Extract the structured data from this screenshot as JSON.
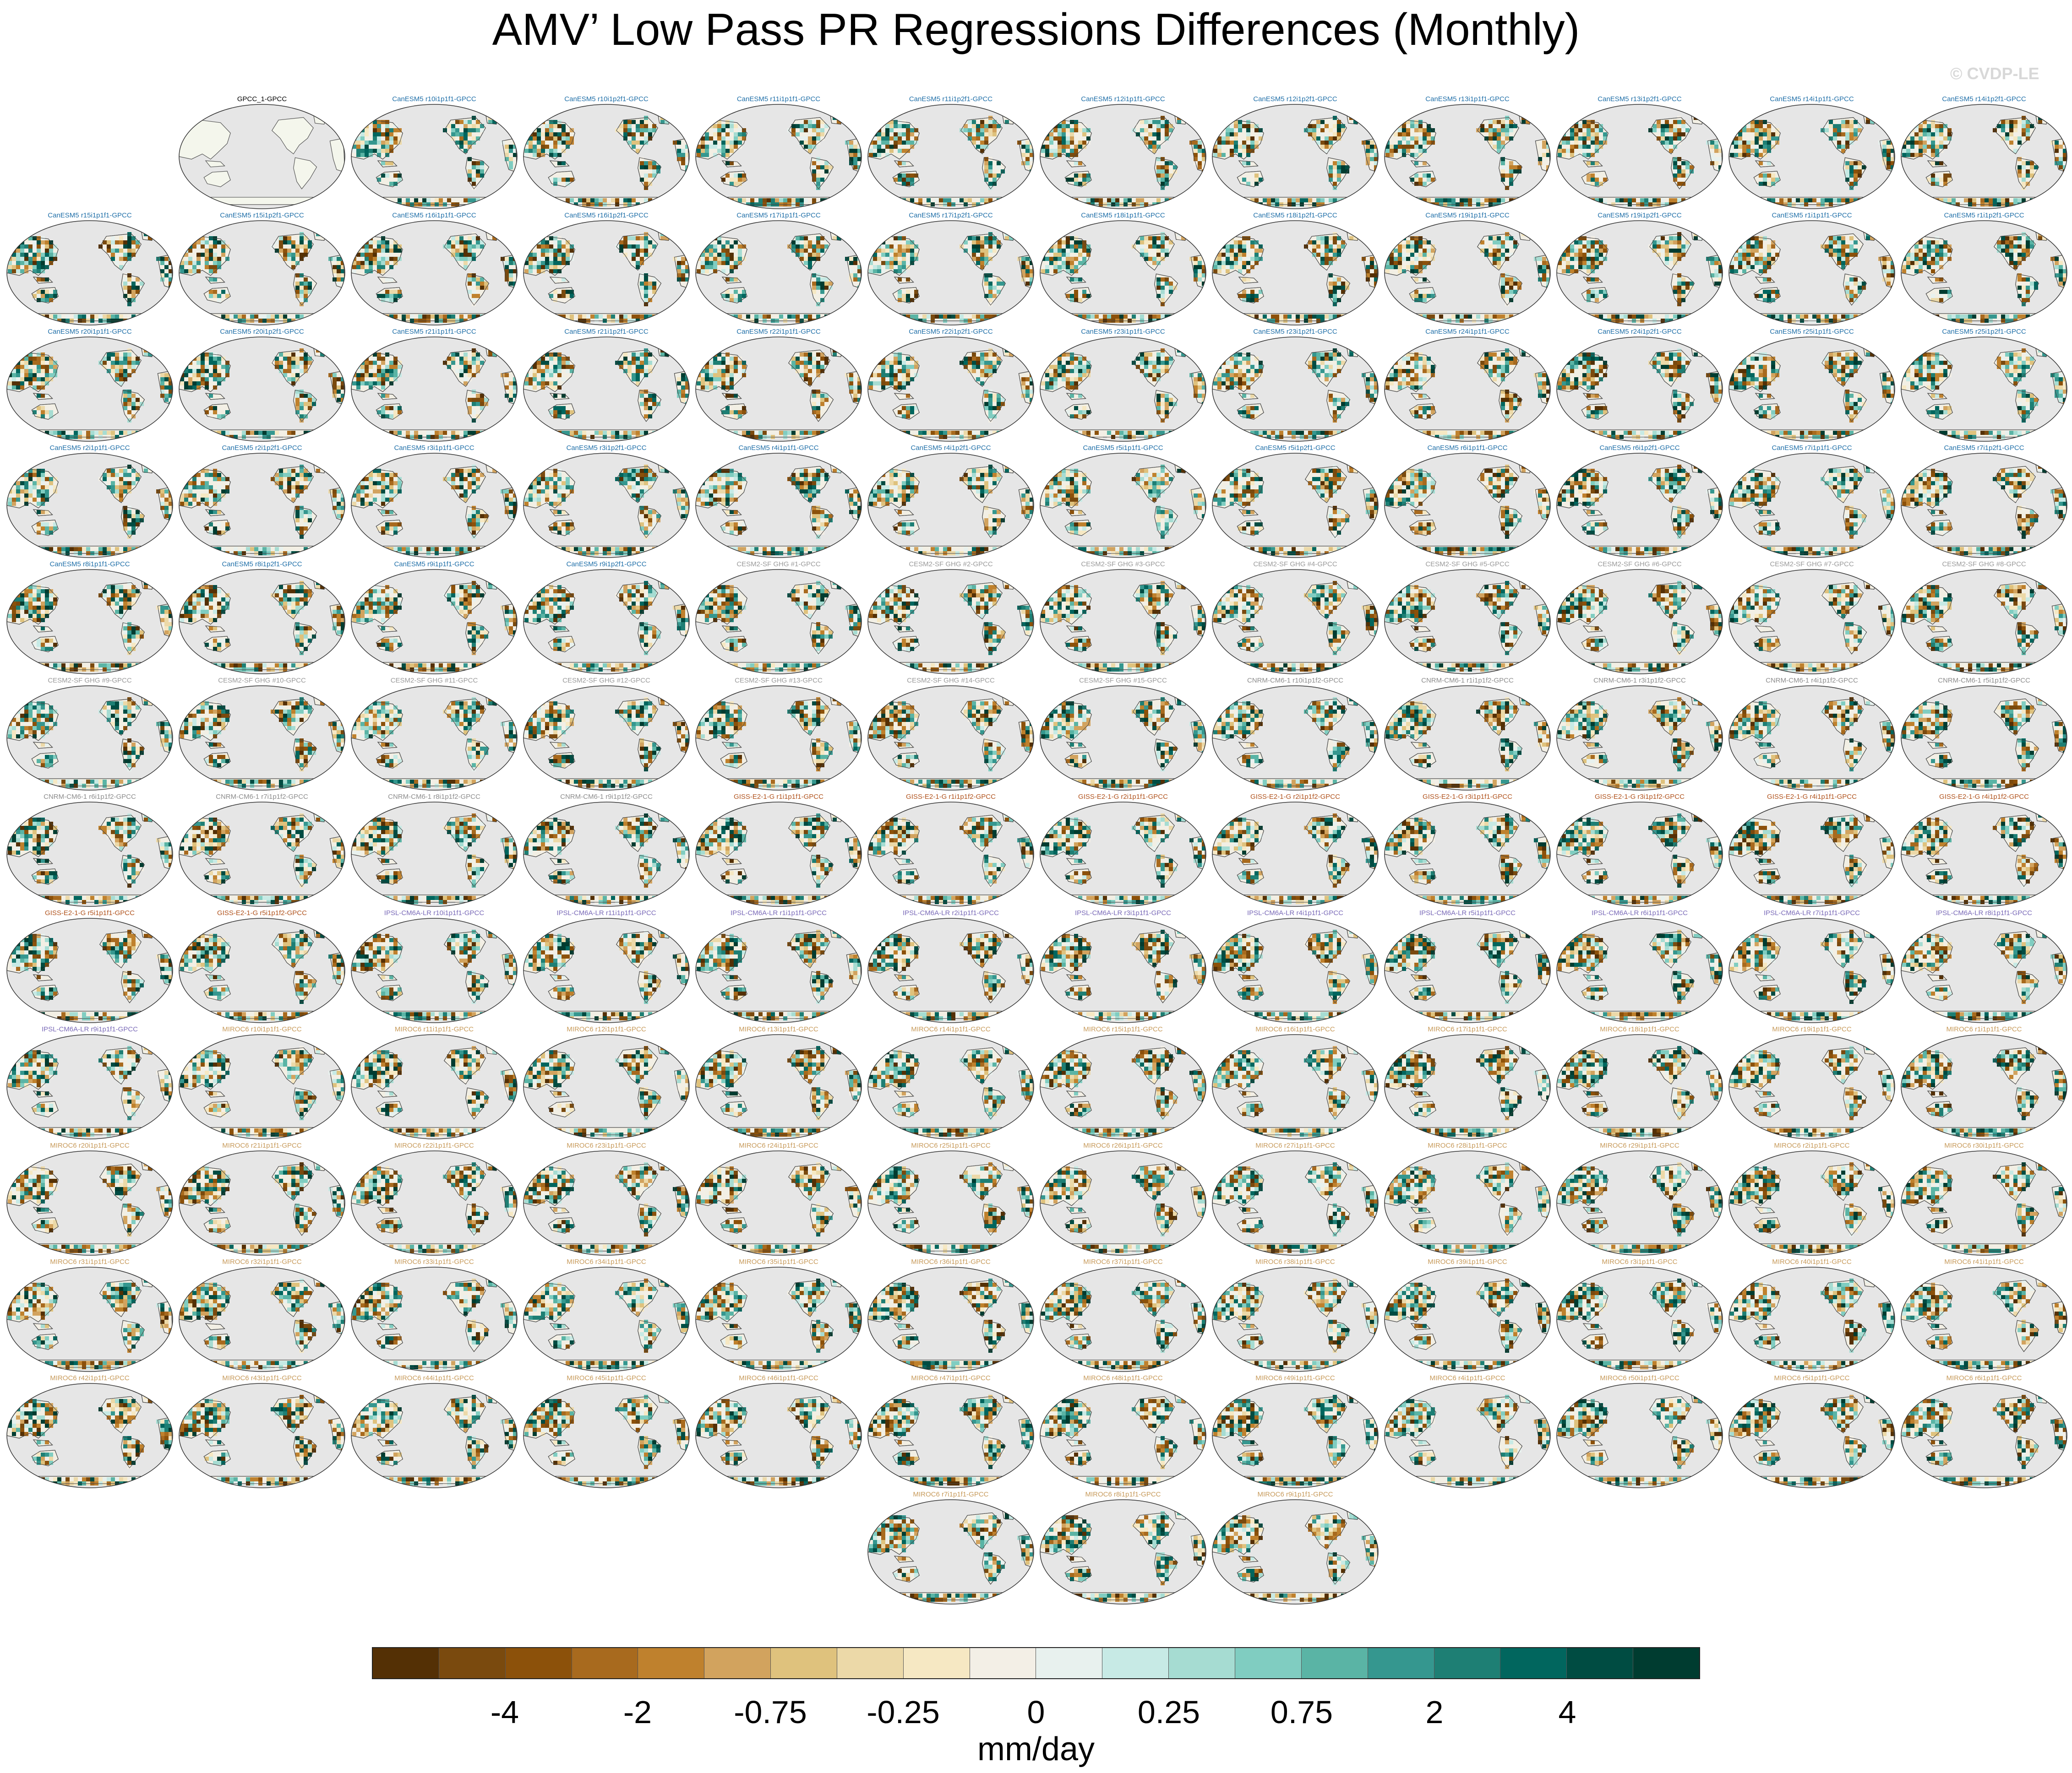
{
  "title": "AMV’ Low Pass PR Regressions Differences (Monthly)",
  "watermark": "© CVDP-LE",
  "chart_data": {
    "type": "map-grid",
    "title": "AMV’ Low Pass PR Regressions Differences (Monthly)",
    "projection": "robinson",
    "panels": [
      {
        "label": "GPCC_1-GPCC",
        "family": "obs"
      },
      {
        "label": "CanESM5 r10i1p1f1-GPCC",
        "family": "canesm"
      },
      {
        "label": "CanESM5 r10i1p2f1-GPCC",
        "family": "canesm"
      },
      {
        "label": "CanESM5 r11i1p1f1-GPCC",
        "family": "canesm"
      },
      {
        "label": "CanESM5 r11i1p2f1-GPCC",
        "family": "canesm"
      },
      {
        "label": "CanESM5 r12i1p1f1-GPCC",
        "family": "canesm"
      },
      {
        "label": "CanESM5 r12i1p2f1-GPCC",
        "family": "canesm"
      },
      {
        "label": "CanESM5 r13i1p1f1-GPCC",
        "family": "canesm"
      },
      {
        "label": "CanESM5 r13i1p2f1-GPCC",
        "family": "canesm"
      },
      {
        "label": "CanESM5 r14i1p1f1-GPCC",
        "family": "canesm"
      },
      {
        "label": "CanESM5 r14i1p2f1-GPCC",
        "family": "canesm"
      },
      {
        "label": "CanESM5 r15i1p1f1-GPCC",
        "family": "canesm"
      },
      {
        "label": "CanESM5 r15i1p2f1-GPCC",
        "family": "canesm"
      },
      {
        "label": "CanESM5 r16i1p1f1-GPCC",
        "family": "canesm"
      },
      {
        "label": "CanESM5 r16i1p2f1-GPCC",
        "family": "canesm"
      },
      {
        "label": "CanESM5 r17i1p1f1-GPCC",
        "family": "canesm"
      },
      {
        "label": "CanESM5 r17i1p2f1-GPCC",
        "family": "canesm"
      },
      {
        "label": "CanESM5 r18i1p1f1-GPCC",
        "family": "canesm"
      },
      {
        "label": "CanESM5 r18i1p2f1-GPCC",
        "family": "canesm"
      },
      {
        "label": "CanESM5 r19i1p1f1-GPCC",
        "family": "canesm"
      },
      {
        "label": "CanESM5 r19i1p2f1-GPCC",
        "family": "canesm"
      },
      {
        "label": "CanESM5 r1i1p1f1-GPCC",
        "family": "canesm"
      },
      {
        "label": "CanESM5 r1i1p2f1-GPCC",
        "family": "canesm"
      },
      {
        "label": "CanESM5 r20i1p1f1-GPCC",
        "family": "canesm"
      },
      {
        "label": "CanESM5 r20i1p2f1-GPCC",
        "family": "canesm"
      },
      {
        "label": "CanESM5 r21i1p1f1-GPCC",
        "family": "canesm"
      },
      {
        "label": "CanESM5 r21i1p2f1-GPCC",
        "family": "canesm"
      },
      {
        "label": "CanESM5 r22i1p1f1-GPCC",
        "family": "canesm"
      },
      {
        "label": "CanESM5 r22i1p2f1-GPCC",
        "family": "canesm"
      },
      {
        "label": "CanESM5 r23i1p1f1-GPCC",
        "family": "canesm"
      },
      {
        "label": "CanESM5 r23i1p2f1-GPCC",
        "family": "canesm"
      },
      {
        "label": "CanESM5 r24i1p1f1-GPCC",
        "family": "canesm"
      },
      {
        "label": "CanESM5 r24i1p2f1-GPCC",
        "family": "canesm"
      },
      {
        "label": "CanESM5 r25i1p1f1-GPCC",
        "family": "canesm"
      },
      {
        "label": "CanESM5 r25i1p2f1-GPCC",
        "family": "canesm"
      },
      {
        "label": "CanESM5 r2i1p1f1-GPCC",
        "family": "canesm"
      },
      {
        "label": "CanESM5 r2i1p2f1-GPCC",
        "family": "canesm"
      },
      {
        "label": "CanESM5 r3i1p1f1-GPCC",
        "family": "canesm"
      },
      {
        "label": "CanESM5 r3i1p2f1-GPCC",
        "family": "canesm"
      },
      {
        "label": "CanESM5 r4i1p1f1-GPCC",
        "family": "canesm"
      },
      {
        "label": "CanESM5 r4i1p2f1-GPCC",
        "family": "canesm"
      },
      {
        "label": "CanESM5 r5i1p1f1-GPCC",
        "family": "canesm"
      },
      {
        "label": "CanESM5 r5i1p2f1-GPCC",
        "family": "canesm"
      },
      {
        "label": "CanESM5 r6i1p1f1-GPCC",
        "family": "canesm"
      },
      {
        "label": "CanESM5 r6i1p2f1-GPCC",
        "family": "canesm"
      },
      {
        "label": "CanESM5 r7i1p1f1-GPCC",
        "family": "canesm"
      },
      {
        "label": "CanESM5 r7i1p2f1-GPCC",
        "family": "canesm"
      },
      {
        "label": "CanESM5 r8i1p1f1-GPCC",
        "family": "canesm"
      },
      {
        "label": "CanESM5 r8i1p2f1-GPCC",
        "family": "canesm"
      },
      {
        "label": "CanESM5 r9i1p1f1-GPCC",
        "family": "canesm"
      },
      {
        "label": "CanESM5 r9i1p2f1-GPCC",
        "family": "canesm"
      },
      {
        "label": "CESM2-SF GHG #1-GPCC",
        "family": "cesm2"
      },
      {
        "label": "CESM2-SF GHG #2-GPCC",
        "family": "cesm2"
      },
      {
        "label": "CESM2-SF GHG #3-GPCC",
        "family": "cesm2"
      },
      {
        "label": "CESM2-SF GHG #4-GPCC",
        "family": "cesm2"
      },
      {
        "label": "CESM2-SF GHG #5-GPCC",
        "family": "cesm2"
      },
      {
        "label": "CESM2-SF GHG #6-GPCC",
        "family": "cesm2"
      },
      {
        "label": "CESM2-SF GHG #7-GPCC",
        "family": "cesm2"
      },
      {
        "label": "CESM2-SF GHG #8-GPCC",
        "family": "cesm2"
      },
      {
        "label": "CESM2-SF GHG #9-GPCC",
        "family": "cesm2"
      },
      {
        "label": "CESM2-SF GHG #10-GPCC",
        "family": "cesm2"
      },
      {
        "label": "CESM2-SF GHG #11-GPCC",
        "family": "cesm2"
      },
      {
        "label": "CESM2-SF GHG #12-GPCC",
        "family": "cesm2"
      },
      {
        "label": "CESM2-SF GHG #13-GPCC",
        "family": "cesm2"
      },
      {
        "label": "CESM2-SF GHG #14-GPCC",
        "family": "cesm2"
      },
      {
        "label": "CESM2-SF GHG #15-GPCC",
        "family": "cesm2"
      },
      {
        "label": "CNRM-CM6-1 r10i1p1f2-GPCC",
        "family": "cnrm"
      },
      {
        "label": "CNRM-CM6-1 r1i1p1f2-GPCC",
        "family": "cnrm"
      },
      {
        "label": "CNRM-CM6-1 r3i1p1f2-GPCC",
        "family": "cnrm"
      },
      {
        "label": "CNRM-CM6-1 r4i1p1f2-GPCC",
        "family": "cnrm"
      },
      {
        "label": "CNRM-CM6-1 r5i1p1f2-GPCC",
        "family": "cnrm"
      },
      {
        "label": "CNRM-CM6-1 r6i1p1f2-GPCC",
        "family": "cnrm"
      },
      {
        "label": "CNRM-CM6-1 r7i1p1f2-GPCC",
        "family": "cnrm"
      },
      {
        "label": "CNRM-CM6-1 r8i1p1f2-GPCC",
        "family": "cnrm"
      },
      {
        "label": "CNRM-CM6-1 r9i1p1f2-GPCC",
        "family": "cnrm"
      },
      {
        "label": "GISS-E2-1-G r1i1p1f1-GPCC",
        "family": "giss"
      },
      {
        "label": "GISS-E2-1-G r1i1p1f2-GPCC",
        "family": "giss"
      },
      {
        "label": "GISS-E2-1-G r2i1p1f1-GPCC",
        "family": "giss"
      },
      {
        "label": "GISS-E2-1-G r2i1p1f2-GPCC",
        "family": "giss"
      },
      {
        "label": "GISS-E2-1-G r3i1p1f1-GPCC",
        "family": "giss"
      },
      {
        "label": "GISS-E2-1-G r3i1p1f2-GPCC",
        "family": "giss"
      },
      {
        "label": "GISS-E2-1-G r4i1p1f1-GPCC",
        "family": "giss"
      },
      {
        "label": "GISS-E2-1-G r4i1p1f2-GPCC",
        "family": "giss"
      },
      {
        "label": "GISS-E2-1-G r5i1p1f1-GPCC",
        "family": "giss"
      },
      {
        "label": "GISS-E2-1-G r5i1p1f2-GPCC",
        "family": "giss"
      },
      {
        "label": "IPSL-CM6A-LR r10i1p1f1-GPCC",
        "family": "ipsl"
      },
      {
        "label": "IPSL-CM6A-LR r11i1p1f1-GPCC",
        "family": "ipsl"
      },
      {
        "label": "IPSL-CM6A-LR r1i1p1f1-GPCC",
        "family": "ipsl"
      },
      {
        "label": "IPSL-CM6A-LR r2i1p1f1-GPCC",
        "family": "ipsl"
      },
      {
        "label": "IPSL-CM6A-LR r3i1p1f1-GPCC",
        "family": "ipsl"
      },
      {
        "label": "IPSL-CM6A-LR r4i1p1f1-GPCC",
        "family": "ipsl"
      },
      {
        "label": "IPSL-CM6A-LR r5i1p1f1-GPCC",
        "family": "ipsl"
      },
      {
        "label": "IPSL-CM6A-LR r6i1p1f1-GPCC",
        "family": "ipsl"
      },
      {
        "label": "IPSL-CM6A-LR r7i1p1f1-GPCC",
        "family": "ipsl"
      },
      {
        "label": "IPSL-CM6A-LR r8i1p1f1-GPCC",
        "family": "ipsl"
      },
      {
        "label": "IPSL-CM6A-LR r9i1p1f1-GPCC",
        "family": "ipsl"
      },
      {
        "label": "MIROC6 r10i1p1f1-GPCC",
        "family": "miroc"
      },
      {
        "label": "MIROC6 r11i1p1f1-GPCC",
        "family": "miroc"
      },
      {
        "label": "MIROC6 r12i1p1f1-GPCC",
        "family": "miroc"
      },
      {
        "label": "MIROC6 r13i1p1f1-GPCC",
        "family": "miroc"
      },
      {
        "label": "MIROC6 r14i1p1f1-GPCC",
        "family": "miroc"
      },
      {
        "label": "MIROC6 r15i1p1f1-GPCC",
        "family": "miroc"
      },
      {
        "label": "MIROC6 r16i1p1f1-GPCC",
        "family": "miroc"
      },
      {
        "label": "MIROC6 r17i1p1f1-GPCC",
        "family": "miroc"
      },
      {
        "label": "MIROC6 r18i1p1f1-GPCC",
        "family": "miroc"
      },
      {
        "label": "MIROC6 r19i1p1f1-GPCC",
        "family": "miroc"
      },
      {
        "label": "MIROC6 r1i1p1f1-GPCC",
        "family": "miroc"
      },
      {
        "label": "MIROC6 r20i1p1f1-GPCC",
        "family": "miroc"
      },
      {
        "label": "MIROC6 r21i1p1f1-GPCC",
        "family": "miroc"
      },
      {
        "label": "MIROC6 r22i1p1f1-GPCC",
        "family": "miroc"
      },
      {
        "label": "MIROC6 r23i1p1f1-GPCC",
        "family": "miroc"
      },
      {
        "label": "MIROC6 r24i1p1f1-GPCC",
        "family": "miroc"
      },
      {
        "label": "MIROC6 r25i1p1f1-GPCC",
        "family": "miroc"
      },
      {
        "label": "MIROC6 r26i1p1f1-GPCC",
        "family": "miroc"
      },
      {
        "label": "MIROC6 r27i1p1f1-GPCC",
        "family": "miroc"
      },
      {
        "label": "MIROC6 r28i1p1f1-GPCC",
        "family": "miroc"
      },
      {
        "label": "MIROC6 r29i1p1f1-GPCC",
        "family": "miroc"
      },
      {
        "label": "MIROC6 r2i1p1f1-GPCC",
        "family": "miroc"
      },
      {
        "label": "MIROC6 r30i1p1f1-GPCC",
        "family": "miroc"
      },
      {
        "label": "MIROC6 r31i1p1f1-GPCC",
        "family": "miroc"
      },
      {
        "label": "MIROC6 r32i1p1f1-GPCC",
        "family": "miroc"
      },
      {
        "label": "MIROC6 r33i1p1f1-GPCC",
        "family": "miroc"
      },
      {
        "label": "MIROC6 r34i1p1f1-GPCC",
        "family": "miroc"
      },
      {
        "label": "MIROC6 r35i1p1f1-GPCC",
        "family": "miroc"
      },
      {
        "label": "MIROC6 r36i1p1f1-GPCC",
        "family": "miroc"
      },
      {
        "label": "MIROC6 r37i1p1f1-GPCC",
        "family": "miroc"
      },
      {
        "label": "MIROC6 r38i1p1f1-GPCC",
        "family": "miroc"
      },
      {
        "label": "MIROC6 r39i1p1f1-GPCC",
        "family": "miroc"
      },
      {
        "label": "MIROC6 r3i1p1f1-GPCC",
        "family": "miroc"
      },
      {
        "label": "MIROC6 r40i1p1f1-GPCC",
        "family": "miroc"
      },
      {
        "label": "MIROC6 r41i1p1f1-GPCC",
        "family": "miroc"
      },
      {
        "label": "MIROC6 r42i1p1f1-GPCC",
        "family": "miroc"
      },
      {
        "label": "MIROC6 r43i1p1f1-GPCC",
        "family": "miroc"
      },
      {
        "label": "MIROC6 r44i1p1f1-GPCC",
        "family": "miroc"
      },
      {
        "label": "MIROC6 r45i1p1f1-GPCC",
        "family": "miroc"
      },
      {
        "label": "MIROC6 r46i1p1f1-GPCC",
        "family": "miroc"
      },
      {
        "label": "MIROC6 r47i1p1f1-GPCC",
        "family": "miroc"
      },
      {
        "label": "MIROC6 r48i1p1f1-GPCC",
        "family": "miroc"
      },
      {
        "label": "MIROC6 r49i1p1f1-GPCC",
        "family": "miroc"
      },
      {
        "label": "MIROC6 r4i1p1f1-GPCC",
        "family": "miroc"
      },
      {
        "label": "MIROC6 r50i1p1f1-GPCC",
        "family": "miroc"
      },
      {
        "label": "MIROC6 r5i1p1f1-GPCC",
        "family": "miroc"
      },
      {
        "label": "MIROC6 r6i1p1f1-GPCC",
        "family": "miroc"
      },
      {
        "label": "MIROC6 r7i1p1f1-GPCC",
        "family": "miroc"
      },
      {
        "label": "MIROC6 r8i1p1f1-GPCC",
        "family": "miroc"
      },
      {
        "label": "MIROC6 r9i1p1f1-GPCC",
        "family": "miroc"
      }
    ],
    "family_colors": {
      "obs": "#000000",
      "canesm": "#1f6fa8",
      "cesm2": "#9a9a9a",
      "cnrm": "#8c8c8c",
      "giss": "#b0521c",
      "ipsl": "#7a6ab8",
      "miroc": "#c79a5a"
    },
    "colorbar": {
      "units": "mm/day",
      "colors": [
        "#543005",
        "#7a4a0e",
        "#8c510a",
        "#a86a1e",
        "#bf812d",
        "#d2a35e",
        "#dfc27d",
        "#ecd9a8",
        "#f6e8c3",
        "#f3efe6",
        "#e8f1ee",
        "#c7eae5",
        "#a6dcd2",
        "#80cdc1",
        "#5ab4a5",
        "#35978f",
        "#1e7f74",
        "#01665e",
        "#004c42",
        "#003c30"
      ],
      "tick_labels": [
        "-4",
        "-2",
        "-0.75",
        "-0.25",
        "0",
        "0.25",
        "0.75",
        "2",
        "4"
      ]
    }
  }
}
